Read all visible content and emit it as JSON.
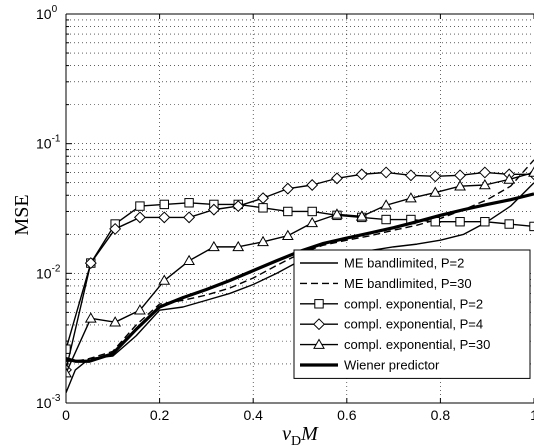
{
  "chart_data": {
    "type": "line",
    "title": "",
    "xlabel": "ν_D M",
    "ylabel": "MSE",
    "xlim": [
      0,
      1
    ],
    "ylim": [
      0.001,
      1
    ],
    "yscale": "log",
    "grid": true,
    "legend_position": "bottom-right",
    "x_ticks": [
      0,
      0.2,
      0.4,
      0.6,
      0.8,
      1
    ],
    "x_tick_labels": [
      "0",
      "0.2",
      "0.4",
      "0.6",
      "0.8",
      "1"
    ],
    "y_ticks": [
      0.001,
      0.01,
      0.1,
      1
    ],
    "series": [
      {
        "name": "ME bandlimited, P=2",
        "style": "solid",
        "marker": "none",
        "width": "thin",
        "x": [
          0,
          0.02,
          0.05,
          0.1,
          0.15,
          0.2,
          0.25,
          0.3,
          0.35,
          0.4,
          0.45,
          0.5,
          0.55,
          0.6,
          0.65,
          0.7,
          0.75,
          0.8,
          0.85,
          0.9,
          0.95,
          1.0
        ],
        "y": [
          0.0012,
          0.0018,
          0.0022,
          0.0023,
          0.0033,
          0.0052,
          0.0055,
          0.0062,
          0.007,
          0.0082,
          0.01,
          0.0125,
          0.014,
          0.0142,
          0.015,
          0.016,
          0.0168,
          0.018,
          0.02,
          0.025,
          0.033,
          0.05
        ]
      },
      {
        "name": "ME bandlimited, P=30",
        "style": "dashed",
        "marker": "none",
        "width": "thin",
        "x": [
          0,
          0.02,
          0.05,
          0.1,
          0.15,
          0.2,
          0.25,
          0.3,
          0.35,
          0.4,
          0.45,
          0.5,
          0.55,
          0.6,
          0.65,
          0.7,
          0.75,
          0.8,
          0.85,
          0.9,
          0.95,
          1.0
        ],
        "y": [
          0.0021,
          0.0021,
          0.0022,
          0.0025,
          0.004,
          0.0058,
          0.0062,
          0.0068,
          0.0077,
          0.0092,
          0.0115,
          0.0142,
          0.0165,
          0.018,
          0.0195,
          0.0215,
          0.0235,
          0.0265,
          0.031,
          0.037,
          0.047,
          0.075
        ]
      },
      {
        "name": "compl. exponential, P=2",
        "style": "solid",
        "marker": "square",
        "width": "thin",
        "x": [
          0,
          0.053,
          0.105,
          0.158,
          0.21,
          0.263,
          0.316,
          0.368,
          0.421,
          0.474,
          0.526,
          0.579,
          0.632,
          0.684,
          0.737,
          0.789,
          0.842,
          0.895,
          0.947,
          1.0
        ],
        "y": [
          0.0026,
          0.012,
          0.024,
          0.033,
          0.034,
          0.035,
          0.034,
          0.034,
          0.032,
          0.03,
          0.03,
          0.028,
          0.027,
          0.026,
          0.026,
          0.025,
          0.025,
          0.025,
          0.024,
          0.023
        ]
      },
      {
        "name": "compl. exponential, P=4",
        "style": "solid",
        "marker": "diamond",
        "width": "thin",
        "x": [
          0,
          0.053,
          0.105,
          0.158,
          0.21,
          0.263,
          0.316,
          0.368,
          0.421,
          0.474,
          0.526,
          0.579,
          0.632,
          0.684,
          0.737,
          0.789,
          0.842,
          0.895,
          0.947,
          1.0
        ],
        "y": [
          0.0018,
          0.012,
          0.022,
          0.027,
          0.027,
          0.027,
          0.031,
          0.033,
          0.038,
          0.045,
          0.048,
          0.054,
          0.058,
          0.06,
          0.057,
          0.056,
          0.057,
          0.06,
          0.058,
          0.058
        ]
      },
      {
        "name": "compl. exponential, P=30",
        "style": "solid",
        "marker": "triangle",
        "width": "thin",
        "x": [
          0,
          0.053,
          0.105,
          0.158,
          0.21,
          0.263,
          0.316,
          0.368,
          0.421,
          0.474,
          0.526,
          0.579,
          0.632,
          0.684,
          0.737,
          0.789,
          0.842,
          0.895,
          0.947,
          1.0
        ],
        "y": [
          0.0017,
          0.0045,
          0.0042,
          0.0052,
          0.0088,
          0.0125,
          0.016,
          0.016,
          0.0175,
          0.0195,
          0.0245,
          0.0285,
          0.0275,
          0.0335,
          0.038,
          0.042,
          0.047,
          0.048,
          0.053,
          0.06
        ]
      },
      {
        "name": "Wiener predictor",
        "style": "solid",
        "marker": "none",
        "width": "thick",
        "x": [
          0,
          0.02,
          0.05,
          0.1,
          0.15,
          0.2,
          0.25,
          0.3,
          0.35,
          0.4,
          0.45,
          0.5,
          0.55,
          0.6,
          0.65,
          0.7,
          0.75,
          0.8,
          0.85,
          0.9,
          0.95,
          1.0
        ],
        "y": [
          0.0022,
          0.0021,
          0.0021,
          0.0024,
          0.0037,
          0.0055,
          0.0065,
          0.0075,
          0.0088,
          0.0105,
          0.0125,
          0.0148,
          0.017,
          0.0187,
          0.0205,
          0.0225,
          0.025,
          0.028,
          0.031,
          0.034,
          0.037,
          0.041
        ]
      }
    ]
  }
}
